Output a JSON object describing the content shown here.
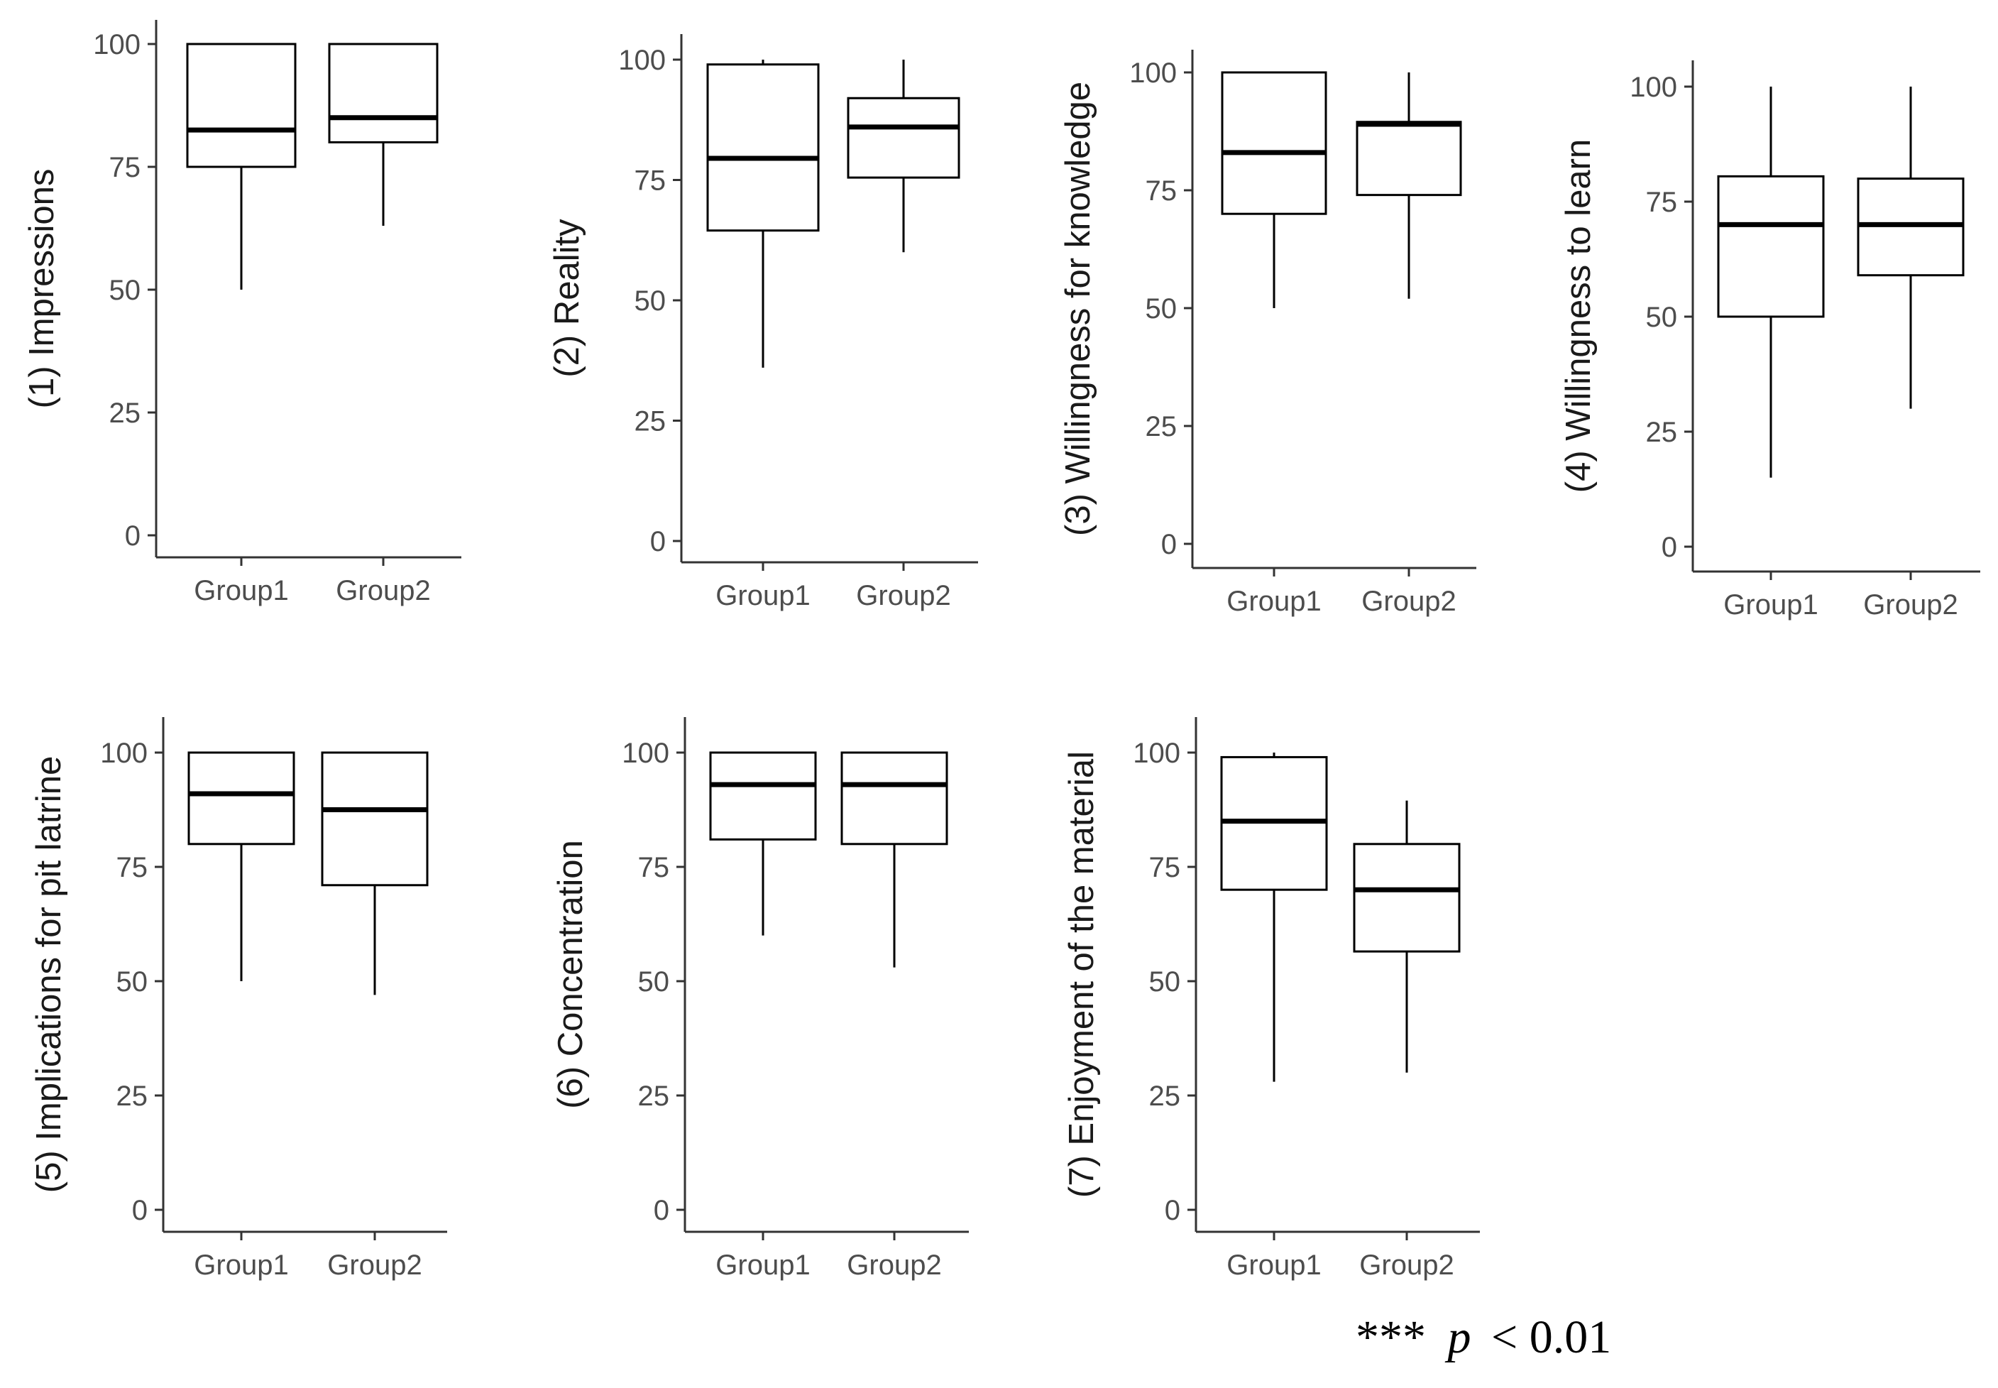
{
  "chart_data": [
    {
      "type": "box",
      "ylabel": "(1) Impressions",
      "categories": [
        "Group1",
        "Group2"
      ],
      "yticks": [
        0,
        25,
        50,
        75,
        100
      ],
      "ylim": [
        -4,
        105
      ],
      "boxes": [
        {
          "name": "Group1",
          "min": 50,
          "q1": 75,
          "median": 82.5,
          "q3": 100,
          "max": 100
        },
        {
          "name": "Group2",
          "min": 63,
          "q1": 80,
          "median": 85,
          "q3": 100,
          "max": 100
        }
      ]
    },
    {
      "type": "box",
      "ylabel": "(2) Reality",
      "categories": [
        "Group1",
        "Group2"
      ],
      "yticks": [
        0,
        25,
        50,
        75,
        100
      ],
      "ylim": [
        -4,
        105
      ],
      "boxes": [
        {
          "name": "Group1",
          "min": 36,
          "q1": 64.5,
          "median": 79.5,
          "q3": 99,
          "max": 100
        },
        {
          "name": "Group2",
          "min": 60,
          "q1": 75.5,
          "median": 86,
          "q3": 92,
          "max": 100
        }
      ]
    },
    {
      "type": "box",
      "ylabel": "(3) Willingness for knowledge",
      "categories": [
        "Group1",
        "Group2"
      ],
      "yticks": [
        0,
        25,
        50,
        75,
        100
      ],
      "ylim": [
        -4,
        105
      ],
      "boxes": [
        {
          "name": "Group1",
          "min": 50,
          "q1": 70,
          "median": 83,
          "q3": 100,
          "max": 100
        },
        {
          "name": "Group2",
          "min": 52,
          "q1": 74,
          "median": 89,
          "q3": 89.5,
          "max": 100
        }
      ]
    },
    {
      "type": "box",
      "ylabel": "(4) Willingness to learn",
      "categories": [
        "Group1",
        "Group2"
      ],
      "yticks": [
        0,
        25,
        50,
        75,
        100
      ],
      "ylim": [
        -4,
        105
      ],
      "boxes": [
        {
          "name": "Group1",
          "min": 15,
          "q1": 50,
          "median": 70,
          "q3": 80.5,
          "max": 100
        },
        {
          "name": "Group2",
          "min": 30,
          "q1": 59,
          "median": 70,
          "q3": 80,
          "max": 100
        }
      ]
    },
    {
      "type": "box",
      "ylabel": "(5) Implications for pit latrine",
      "categories": [
        "Group1",
        "Group2"
      ],
      "yticks": [
        0,
        25,
        50,
        75,
        100
      ],
      "ylim": [
        -4,
        105
      ],
      "boxes": [
        {
          "name": "Group1",
          "min": 50,
          "q1": 80,
          "median": 91,
          "q3": 100,
          "max": 100
        },
        {
          "name": "Group2",
          "min": 47,
          "q1": 71,
          "median": 87.5,
          "q3": 100,
          "max": 100
        }
      ]
    },
    {
      "type": "box",
      "ylabel": "(6) Concentration",
      "categories": [
        "Group1",
        "Group2"
      ],
      "yticks": [
        0,
        25,
        50,
        75,
        100
      ],
      "ylim": [
        -4,
        105
      ],
      "boxes": [
        {
          "name": "Group1",
          "min": 60,
          "q1": 81,
          "median": 93,
          "q3": 100,
          "max": 100
        },
        {
          "name": "Group2",
          "min": 53,
          "q1": 80,
          "median": 93,
          "q3": 100,
          "max": 100
        }
      ]
    },
    {
      "type": "box",
      "ylabel": "(7) Enjoyment of the material",
      "categories": [
        "Group1",
        "Group2"
      ],
      "yticks": [
        0,
        25,
        50,
        75,
        100
      ],
      "ylim": [
        -4,
        105
      ],
      "boxes": [
        {
          "name": "Group1",
          "min": 28,
          "q1": 70,
          "median": 85,
          "q3": 99,
          "max": 100
        },
        {
          "name": "Group2",
          "min": 30,
          "q1": 56.5,
          "median": 70,
          "q3": 80,
          "max": 89.5
        }
      ]
    }
  ],
  "footnote": {
    "stars": "***",
    "p": "p",
    "comparison": "< 0.01"
  }
}
